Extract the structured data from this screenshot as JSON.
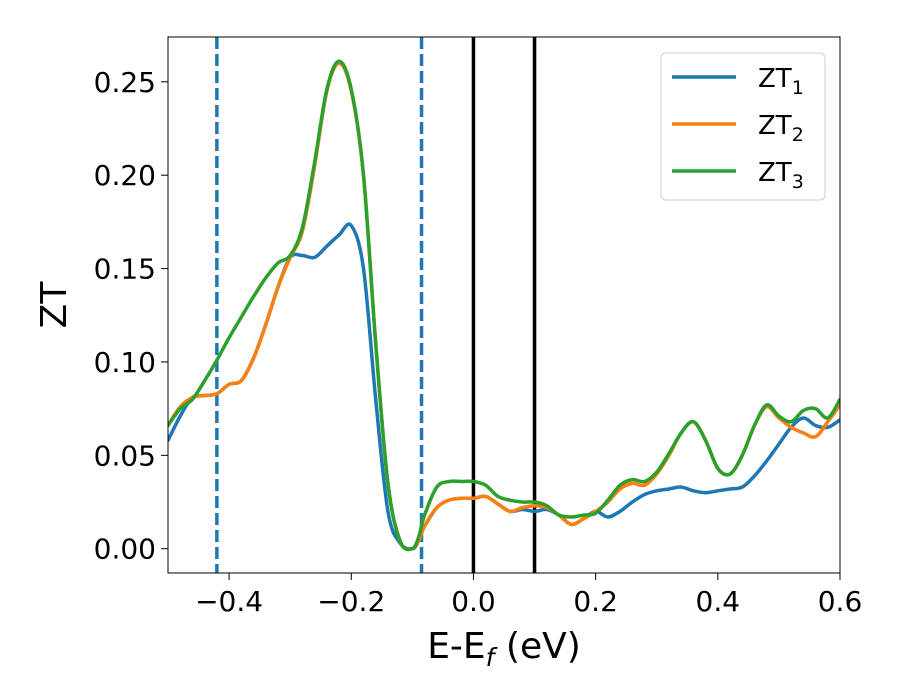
{
  "chart_data": {
    "type": "line",
    "xlabel": "E-E",
    "xlabel_sub": "f",
    "xlabel_unit": " (eV)",
    "ylabel": "ZT",
    "xlim": [
      -0.5,
      0.6
    ],
    "ylim": [
      -0.013,
      0.274
    ],
    "xticks": [
      -0.4,
      -0.2,
      0.0,
      0.2,
      0.4,
      0.6
    ],
    "xtick_labels": [
      "−0.4",
      "−0.2",
      "0.0",
      "0.2",
      "0.4",
      "0.6"
    ],
    "yticks": [
      0.0,
      0.05,
      0.1,
      0.15,
      0.2,
      0.25
    ],
    "ytick_labels": [
      "0.00",
      "0.05",
      "0.10",
      "0.15",
      "0.20",
      "0.25"
    ],
    "grid": false,
    "legend_position": "top-right",
    "vlines": [
      {
        "x": -0.42,
        "style": "dashed",
        "color": "#1f77b4"
      },
      {
        "x": -0.085,
        "style": "dashed",
        "color": "#1f77b4"
      },
      {
        "x": 0.0,
        "style": "solid",
        "color": "#000000"
      },
      {
        "x": 0.1,
        "style": "solid",
        "color": "#000000"
      }
    ],
    "series": [
      {
        "name": "ZT",
        "sub": "1",
        "color": "#1f77b4",
        "x": [
          -0.5,
          -0.48,
          -0.46,
          -0.44,
          -0.42,
          -0.4,
          -0.38,
          -0.36,
          -0.34,
          -0.32,
          -0.3,
          -0.28,
          -0.26,
          -0.24,
          -0.22,
          -0.2,
          -0.18,
          -0.16,
          -0.14,
          -0.12,
          -0.1,
          -0.09,
          -0.08,
          -0.06,
          -0.04,
          -0.02,
          0.0,
          0.02,
          0.04,
          0.06,
          0.08,
          0.1,
          0.12,
          0.14,
          0.16,
          0.18,
          0.2,
          0.22,
          0.24,
          0.26,
          0.28,
          0.3,
          0.32,
          0.34,
          0.36,
          0.38,
          0.4,
          0.42,
          0.44,
          0.46,
          0.48,
          0.5,
          0.52,
          0.54,
          0.56,
          0.58,
          0.6
        ],
        "y": [
          0.058,
          0.071,
          0.081,
          0.082,
          0.083,
          0.088,
          0.09,
          0.102,
          0.12,
          0.14,
          0.156,
          0.157,
          0.156,
          0.162,
          0.168,
          0.173,
          0.15,
          0.08,
          0.02,
          0.003,
          0.0,
          0.005,
          0.012,
          0.022,
          0.026,
          0.027,
          0.027,
          0.028,
          0.024,
          0.02,
          0.021,
          0.02,
          0.021,
          0.018,
          0.013,
          0.016,
          0.02,
          0.017,
          0.02,
          0.025,
          0.029,
          0.031,
          0.032,
          0.033,
          0.031,
          0.03,
          0.031,
          0.032,
          0.033,
          0.039,
          0.047,
          0.056,
          0.065,
          0.07,
          0.066,
          0.065,
          0.069
        ]
      },
      {
        "name": "ZT",
        "sub": "2",
        "color": "#ff7f0e",
        "x": [
          -0.5,
          -0.48,
          -0.46,
          -0.44,
          -0.42,
          -0.4,
          -0.38,
          -0.36,
          -0.34,
          -0.32,
          -0.3,
          -0.28,
          -0.26,
          -0.24,
          -0.22,
          -0.2,
          -0.18,
          -0.16,
          -0.14,
          -0.12,
          -0.1,
          -0.09,
          -0.08,
          -0.06,
          -0.04,
          -0.02,
          0.0,
          0.02,
          0.04,
          0.06,
          0.08,
          0.1,
          0.12,
          0.14,
          0.16,
          0.18,
          0.2,
          0.22,
          0.24,
          0.26,
          0.28,
          0.3,
          0.32,
          0.34,
          0.36,
          0.38,
          0.4,
          0.42,
          0.44,
          0.46,
          0.48,
          0.5,
          0.52,
          0.54,
          0.56,
          0.58,
          0.6
        ],
        "y": [
          0.066,
          0.076,
          0.081,
          0.082,
          0.083,
          0.088,
          0.09,
          0.102,
          0.12,
          0.14,
          0.156,
          0.17,
          0.205,
          0.245,
          0.26,
          0.245,
          0.2,
          0.11,
          0.035,
          0.004,
          0.0,
          0.004,
          0.012,
          0.022,
          0.026,
          0.027,
          0.027,
          0.028,
          0.024,
          0.02,
          0.022,
          0.023,
          0.022,
          0.018,
          0.013,
          0.016,
          0.02,
          0.025,
          0.032,
          0.035,
          0.034,
          0.04,
          0.05,
          0.062,
          0.068,
          0.058,
          0.043,
          0.04,
          0.05,
          0.066,
          0.076,
          0.07,
          0.065,
          0.062,
          0.06,
          0.068,
          0.077
        ]
      },
      {
        "name": "ZT",
        "sub": "3",
        "color": "#2ca02c",
        "x": [
          -0.5,
          -0.48,
          -0.46,
          -0.44,
          -0.42,
          -0.4,
          -0.38,
          -0.36,
          -0.34,
          -0.32,
          -0.3,
          -0.28,
          -0.26,
          -0.24,
          -0.22,
          -0.2,
          -0.18,
          -0.16,
          -0.14,
          -0.12,
          -0.1,
          -0.09,
          -0.08,
          -0.06,
          -0.04,
          -0.02,
          0.0,
          0.02,
          0.04,
          0.06,
          0.08,
          0.1,
          0.12,
          0.14,
          0.16,
          0.18,
          0.2,
          0.22,
          0.24,
          0.26,
          0.28,
          0.3,
          0.32,
          0.34,
          0.36,
          0.38,
          0.4,
          0.42,
          0.44,
          0.46,
          0.48,
          0.5,
          0.52,
          0.54,
          0.56,
          0.58,
          0.6
        ],
        "y": [
          0.066,
          0.075,
          0.08,
          0.09,
          0.101,
          0.113,
          0.124,
          0.135,
          0.145,
          0.153,
          0.157,
          0.172,
          0.207,
          0.246,
          0.261,
          0.246,
          0.2,
          0.11,
          0.035,
          0.004,
          0.0,
          0.006,
          0.018,
          0.033,
          0.036,
          0.036,
          0.036,
          0.034,
          0.028,
          0.026,
          0.025,
          0.025,
          0.023,
          0.018,
          0.017,
          0.018,
          0.019,
          0.026,
          0.034,
          0.037,
          0.036,
          0.041,
          0.051,
          0.062,
          0.068,
          0.058,
          0.043,
          0.04,
          0.05,
          0.066,
          0.077,
          0.071,
          0.068,
          0.074,
          0.075,
          0.07,
          0.08
        ]
      }
    ]
  }
}
